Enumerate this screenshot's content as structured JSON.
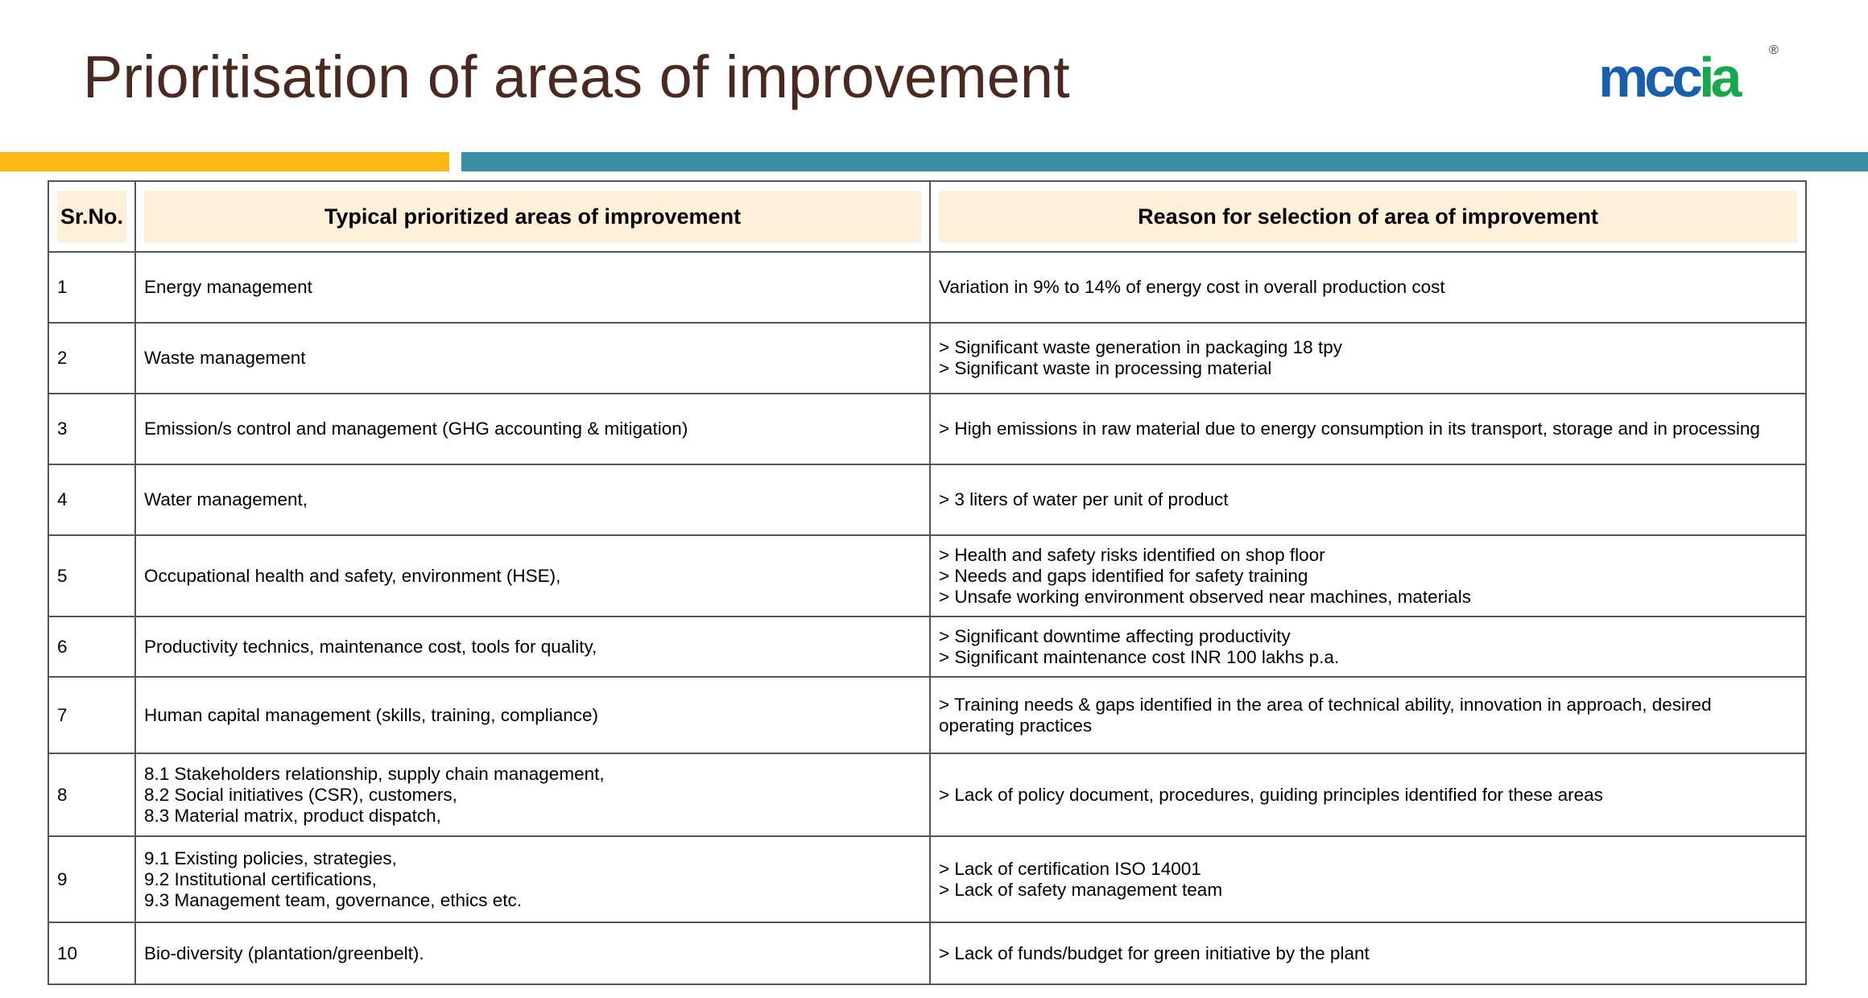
{
  "slide": {
    "title": "Prioritisation of areas of improvement"
  },
  "logo": {
    "text_blue": "mcc",
    "text_green": "ia",
    "reg": "®",
    "colors": {
      "blue": "#1a5fad",
      "green": "#1aa64a"
    }
  },
  "accent_colors": {
    "yellow": "#fdb813",
    "teal": "#3b8ea5",
    "header_fill": "#fef0d8",
    "title": "#4a2a20"
  },
  "table": {
    "headers": {
      "sr": "Sr.No.",
      "area": "Typical prioritized areas of improvement",
      "reason": "Reason for selection of area of improvement"
    },
    "rows": [
      {
        "sr": "1",
        "area": "Energy management",
        "reason": "Variation in 9% to 14% of energy cost in overall production cost"
      },
      {
        "sr": "2",
        "area": "Waste management",
        "reason": "> Significant waste generation in packaging 18 tpy\n> Significant waste in processing material"
      },
      {
        "sr": "3",
        "area": "Emission/s control and management (GHG accounting & mitigation)",
        "reason": "> High emissions in raw material due to energy consumption in its transport, storage and in processing"
      },
      {
        "sr": "4",
        "area": "Water management,",
        "reason": "> 3 liters of water per unit of product"
      },
      {
        "sr": "5",
        "area": "Occupational health and safety, environment (HSE),",
        "reason": "> Health and safety risks identified on shop floor\n> Needs and gaps identified for safety training\n> Unsafe working environment observed near machines, materials"
      },
      {
        "sr": "6",
        "area": "Productivity technics, maintenance cost, tools for quality,",
        "reason": "> Significant downtime affecting productivity\n> Significant maintenance cost INR 100 lakhs p.a."
      },
      {
        "sr": "7",
        "area": "Human capital management (skills, training, compliance)",
        "reason": "> Training needs & gaps identified in the area of technical ability, innovation in approach, desired\n   operating practices"
      },
      {
        "sr": "8",
        "area": "8.1 Stakeholders relationship, supply chain management,\n8.2 Social initiatives (CSR), customers,\n8.3 Material matrix, product dispatch,",
        "reason": "> Lack of policy document, procedures, guiding principles identified for these areas"
      },
      {
        "sr": "9",
        "area": "9.1 Existing policies, strategies,\n9.2 Institutional certifications,\n9.3 Management team, governance, ethics etc.",
        "reason": "> Lack of certification ISO 14001\n> Lack of safety management team"
      },
      {
        "sr": "10",
        "area": "Bio-diversity (plantation/greenbelt).",
        "reason": "> Lack of funds/budget for green initiative by the plant"
      }
    ]
  }
}
